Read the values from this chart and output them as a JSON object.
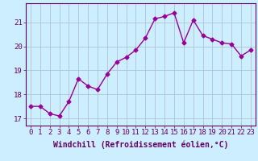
{
  "x": [
    0,
    1,
    2,
    3,
    4,
    5,
    6,
    7,
    8,
    9,
    10,
    11,
    12,
    13,
    14,
    15,
    16,
    17,
    18,
    19,
    20,
    21,
    22,
    23
  ],
  "y": [
    17.5,
    17.5,
    17.2,
    17.1,
    17.7,
    18.65,
    18.35,
    18.2,
    18.85,
    19.35,
    19.55,
    19.85,
    20.35,
    21.15,
    21.25,
    21.4,
    20.15,
    21.1,
    20.45,
    20.3,
    20.15,
    20.1,
    19.6,
    19.85
  ],
  "line_color": "#990099",
  "marker": "D",
  "marker_size": 2.5,
  "bg_color": "#cceeff",
  "grid_color": "#aabbcc",
  "axis_color": "#660066",
  "xlabel": "Windchill (Refroidissement éolien,°C)",
  "xlabel_fontsize": 7,
  "yticks": [
    17,
    18,
    19,
    20,
    21
  ],
  "xticks": [
    0,
    1,
    2,
    3,
    4,
    5,
    6,
    7,
    8,
    9,
    10,
    11,
    12,
    13,
    14,
    15,
    16,
    17,
    18,
    19,
    20,
    21,
    22,
    23
  ],
  "ylim": [
    16.7,
    21.8
  ],
  "xlim": [
    -0.5,
    23.5
  ],
  "tick_fontsize": 6.5,
  "linewidth": 1.0
}
